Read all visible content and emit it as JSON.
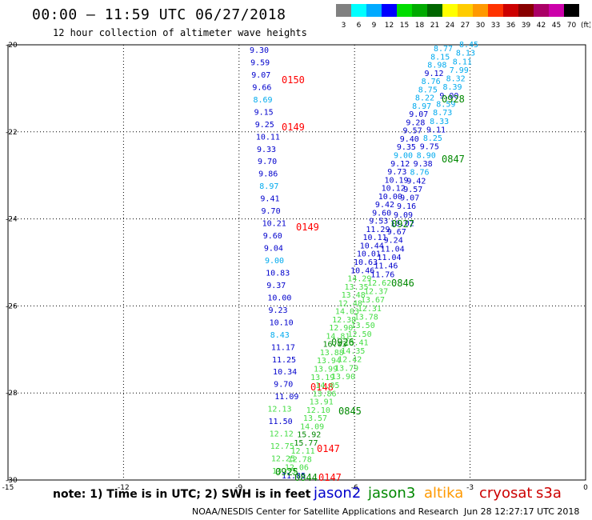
{
  "header": {
    "title": "00:00 – 11:59 UTC 06/27/2018",
    "subtitle": "12 hour collection of altimeter wave heights"
  },
  "color_scale": {
    "unit": "(ft)",
    "bins": [
      {
        "label": "3",
        "color": "#808080"
      },
      {
        "label": "6",
        "color": "#00ffff"
      },
      {
        "label": "9",
        "color": "#00aaff"
      },
      {
        "label": "12",
        "color": "#0000ff"
      },
      {
        "label": "15",
        "color": "#00dd00"
      },
      {
        "label": "18",
        "color": "#00aa00"
      },
      {
        "label": "21",
        "color": "#006600"
      },
      {
        "label": "24",
        "color": "#ffff00"
      },
      {
        "label": "27",
        "color": "#ffcc00"
      },
      {
        "label": "30",
        "color": "#ff9900"
      },
      {
        "label": "33",
        "color": "#ff3300"
      },
      {
        "label": "36",
        "color": "#cc0000"
      },
      {
        "label": "39",
        "color": "#880000"
      },
      {
        "label": "42",
        "color": "#aa0066"
      },
      {
        "label": "45",
        "color": "#cc00aa"
      },
      {
        "label": "70",
        "color": "#000000"
      }
    ]
  },
  "axes": {
    "x_ticks": [
      "-15",
      "-12",
      "-9",
      "-6",
      "-3",
      "0"
    ],
    "y_ticks": [
      "-20",
      "-22",
      "-24",
      "-26",
      "-28",
      "-30"
    ],
    "lon_range": [
      -15,
      0
    ],
    "lat_range": [
      -30,
      -20
    ]
  },
  "colors": {
    "jason2": "#0000cc",
    "jason3": "#008800",
    "altika": "#ff9900",
    "cryosat": "#ff0000",
    "s3a": "#cc0000",
    "sat_cyan": "#00aaee",
    "sat_light_green": "#44dd44"
  },
  "note": "note: 1) Time is in UTC; 2) SWH is in feet",
  "legend": [
    {
      "label": "jason2",
      "color": "#0000cc"
    },
    {
      "label": "jason3",
      "color": "#008800"
    },
    {
      "label": "altika",
      "color": "#ff9900"
    },
    {
      "label": "cryosat",
      "color": "#cc0000"
    },
    {
      "label": "s3a",
      "color": "#cc0000"
    }
  ],
  "footer": {
    "credit": "NOAA/NESDIS Center for Satellite Applications and Research",
    "generated": "Jun 28 12:27:17 UTC 2018"
  },
  "tracks": {
    "track_a_values": [
      {
        "v": "9.30",
        "c": "jason2"
      },
      {
        "v": "9.59",
        "c": "jason2"
      },
      {
        "v": "9.07",
        "c": "jason2"
      },
      {
        "v": "9.66",
        "c": "jason2"
      },
      {
        "v": "8.69",
        "c": "sat_cyan"
      },
      {
        "v": "9.15",
        "c": "jason2"
      },
      {
        "v": "9.25",
        "c": "jason2"
      },
      {
        "v": "10.11",
        "c": "jason2"
      },
      {
        "v": "9.33",
        "c": "jason2"
      },
      {
        "v": "9.70",
        "c": "jason2"
      },
      {
        "v": "9.86",
        "c": "jason2"
      },
      {
        "v": "8.97",
        "c": "sat_cyan"
      },
      {
        "v": "9.41",
        "c": "jason2"
      },
      {
        "v": "9.70",
        "c": "jason2"
      },
      {
        "v": "10.21",
        "c": "jason2"
      },
      {
        "v": "9.60",
        "c": "jason2"
      },
      {
        "v": "9.04",
        "c": "jason2"
      },
      {
        "v": "9.00",
        "c": "sat_cyan"
      },
      {
        "v": "10.83",
        "c": "jason2"
      },
      {
        "v": "9.37",
        "c": "jason2"
      },
      {
        "v": "10.00",
        "c": "jason2"
      },
      {
        "v": "9.23",
        "c": "jason2"
      },
      {
        "v": "10.10",
        "c": "jason2"
      },
      {
        "v": "8.43",
        "c": "sat_cyan"
      },
      {
        "v": "11.17",
        "c": "jason2"
      },
      {
        "v": "11.25",
        "c": "jason2"
      },
      {
        "v": "10.34",
        "c": "jason2"
      },
      {
        "v": "9.70",
        "c": "jason2"
      },
      {
        "v": "11.09",
        "c": "jason2"
      },
      {
        "v": "12.13",
        "c": "sat_light_green"
      },
      {
        "v": "11.50",
        "c": "jason2"
      },
      {
        "v": "12.12",
        "c": "sat_light_green"
      },
      {
        "v": "12.75",
        "c": "sat_light_green"
      },
      {
        "v": "12.25",
        "c": "sat_light_green"
      },
      {
        "v": "13.33",
        "c": "sat_light_green"
      }
    ],
    "track_a_times": [
      {
        "t": "0150",
        "c": "cryosat"
      },
      {
        "t": "0149",
        "c": "cryosat"
      },
      {
        "t": "0149",
        "c": "cryosat"
      },
      {
        "t": "0148",
        "c": "cryosat"
      },
      {
        "t": "0147",
        "c": "cryosat"
      },
      {
        "t": "0147",
        "c": "cryosat"
      }
    ],
    "track_b_times": [
      {
        "t": "0928",
        "c": "jason3"
      },
      {
        "t": "0847",
        "c": "jason3"
      },
      {
        "t": "0927",
        "c": "jason3"
      },
      {
        "t": "0846",
        "c": "jason3"
      },
      {
        "t": "0926",
        "c": "jason3"
      },
      {
        "t": "0845",
        "c": "jason3"
      },
      {
        "t": "0925",
        "c": "jason3"
      },
      {
        "t": "0844",
        "c": "jason3"
      }
    ],
    "track_b_left": [
      {
        "v": "8.77",
        "c": "sat_cyan"
      },
      {
        "v": "8.15",
        "c": "sat_cyan"
      },
      {
        "v": "8.98",
        "c": "sat_cyan"
      },
      {
        "v": "9.12",
        "c": "jason2"
      },
      {
        "v": "8.76",
        "c": "sat_cyan"
      },
      {
        "v": "8.75",
        "c": "sat_cyan"
      },
      {
        "v": "8.22",
        "c": "sat_cyan"
      },
      {
        "v": "8.97",
        "c": "sat_cyan"
      },
      {
        "v": "9.07",
        "c": "jason2"
      },
      {
        "v": "9.28",
        "c": "jason2"
      },
      {
        "v": "9.57",
        "c": "jason2"
      },
      {
        "v": "9.40",
        "c": "jason2"
      },
      {
        "v": "9.35",
        "c": "jason2"
      },
      {
        "v": "9.00",
        "c": "sat_cyan"
      },
      {
        "v": "9.12",
        "c": "jason2"
      },
      {
        "v": "9.73",
        "c": "jason2"
      },
      {
        "v": "10.19",
        "c": "jason2"
      },
      {
        "v": "10.12",
        "c": "jason2"
      },
      {
        "v": "10.00",
        "c": "jason2"
      },
      {
        "v": "9.42",
        "c": "jason2"
      },
      {
        "v": "9.60",
        "c": "jason2"
      },
      {
        "v": "9.53",
        "c": "jason2"
      },
      {
        "v": "11.29",
        "c": "jason2"
      },
      {
        "v": "10.11",
        "c": "jason2"
      },
      {
        "v": "10.44",
        "c": "jason2"
      },
      {
        "v": "10.01",
        "c": "jason2"
      },
      {
        "v": "10.63",
        "c": "jason2"
      },
      {
        "v": "10.46",
        "c": "jason2"
      },
      {
        "v": "14.29",
        "c": "sat_light_green"
      },
      {
        "v": "13.35",
        "c": "sat_light_green"
      },
      {
        "v": "13.48",
        "c": "sat_light_green"
      },
      {
        "v": "12.48",
        "c": "sat_light_green"
      },
      {
        "v": "14.03",
        "c": "sat_light_green"
      },
      {
        "v": "12.38",
        "c": "sat_light_green"
      },
      {
        "v": "12.90",
        "c": "sat_light_green"
      },
      {
        "v": "14.81",
        "c": "sat_light_green"
      },
      {
        "v": "16.03",
        "c": "jason3"
      },
      {
        "v": "13.88",
        "c": "sat_light_green"
      },
      {
        "v": "13.94",
        "c": "sat_light_green"
      },
      {
        "v": "13.99",
        "c": "sat_light_green"
      },
      {
        "v": "13.19",
        "c": "sat_light_green"
      },
      {
        "v": "14.05",
        "c": "sat_light_green"
      },
      {
        "v": "13.86",
        "c": "sat_light_green"
      },
      {
        "v": "13.91",
        "c": "sat_light_green"
      },
      {
        "v": "12.10",
        "c": "sat_light_green"
      },
      {
        "v": "13.57",
        "c": "sat_light_green"
      },
      {
        "v": "14.09",
        "c": "sat_light_green"
      },
      {
        "v": "15.92",
        "c": "jason3"
      },
      {
        "v": "15.77",
        "c": "jason3"
      },
      {
        "v": "12.11",
        "c": "sat_light_green"
      },
      {
        "v": "12.78",
        "c": "sat_light_green"
      },
      {
        "v": "12.06",
        "c": "sat_light_green"
      },
      {
        "v": "11.85",
        "c": "jason2"
      }
    ],
    "track_b_right": [
      {
        "v": "8.45",
        "c": "sat_cyan"
      },
      {
        "v": "8.13",
        "c": "sat_cyan"
      },
      {
        "v": "8.11",
        "c": "sat_cyan"
      },
      {
        "v": "7.99",
        "c": "sat_cyan"
      },
      {
        "v": "8.32",
        "c": "sat_cyan"
      },
      {
        "v": "8.39",
        "c": "sat_cyan"
      },
      {
        "v": "9.00",
        "c": "jason2"
      },
      {
        "v": "8.59",
        "c": "sat_cyan"
      },
      {
        "v": "8.73",
        "c": "sat_cyan"
      },
      {
        "v": "8.33",
        "c": "sat_cyan"
      },
      {
        "v": "9.11",
        "c": "jason2"
      },
      {
        "v": "8.25",
        "c": "sat_cyan"
      },
      {
        "v": "9.75",
        "c": "jason2"
      },
      {
        "v": "8.90",
        "c": "sat_cyan"
      },
      {
        "v": "9.38",
        "c": "jason2"
      },
      {
        "v": "8.76",
        "c": "sat_cyan"
      },
      {
        "v": "9.42",
        "c": "jason2"
      },
      {
        "v": "9.57",
        "c": "jason2"
      },
      {
        "v": "9.07",
        "c": "jason2"
      },
      {
        "v": "9.16",
        "c": "jason2"
      },
      {
        "v": "9.09",
        "c": "jason2"
      },
      {
        "v": "10.02",
        "c": "jason2"
      },
      {
        "v": "9.67",
        "c": "jason2"
      },
      {
        "v": "9.24",
        "c": "jason2"
      },
      {
        "v": "11.04",
        "c": "jason2"
      },
      {
        "v": "11.04",
        "c": "jason2"
      },
      {
        "v": "11.46",
        "c": "jason2"
      },
      {
        "v": "11.76",
        "c": "jason2"
      },
      {
        "v": "12.62",
        "c": "sat_light_green"
      },
      {
        "v": "12.37",
        "c": "sat_light_green"
      },
      {
        "v": "13.67",
        "c": "sat_light_green"
      },
      {
        "v": "12.31",
        "c": "sat_light_green"
      },
      {
        "v": "13.78",
        "c": "sat_light_green"
      },
      {
        "v": "13.50",
        "c": "sat_light_green"
      },
      {
        "v": "12.50",
        "c": "sat_light_green"
      },
      {
        "v": "13.41",
        "c": "sat_light_green"
      },
      {
        "v": "14.35",
        "c": "sat_light_green"
      },
      {
        "v": "12.42",
        "c": "sat_light_green"
      },
      {
        "v": "13.79",
        "c": "sat_light_green"
      },
      {
        "v": "13.90",
        "c": "sat_light_green"
      }
    ]
  }
}
